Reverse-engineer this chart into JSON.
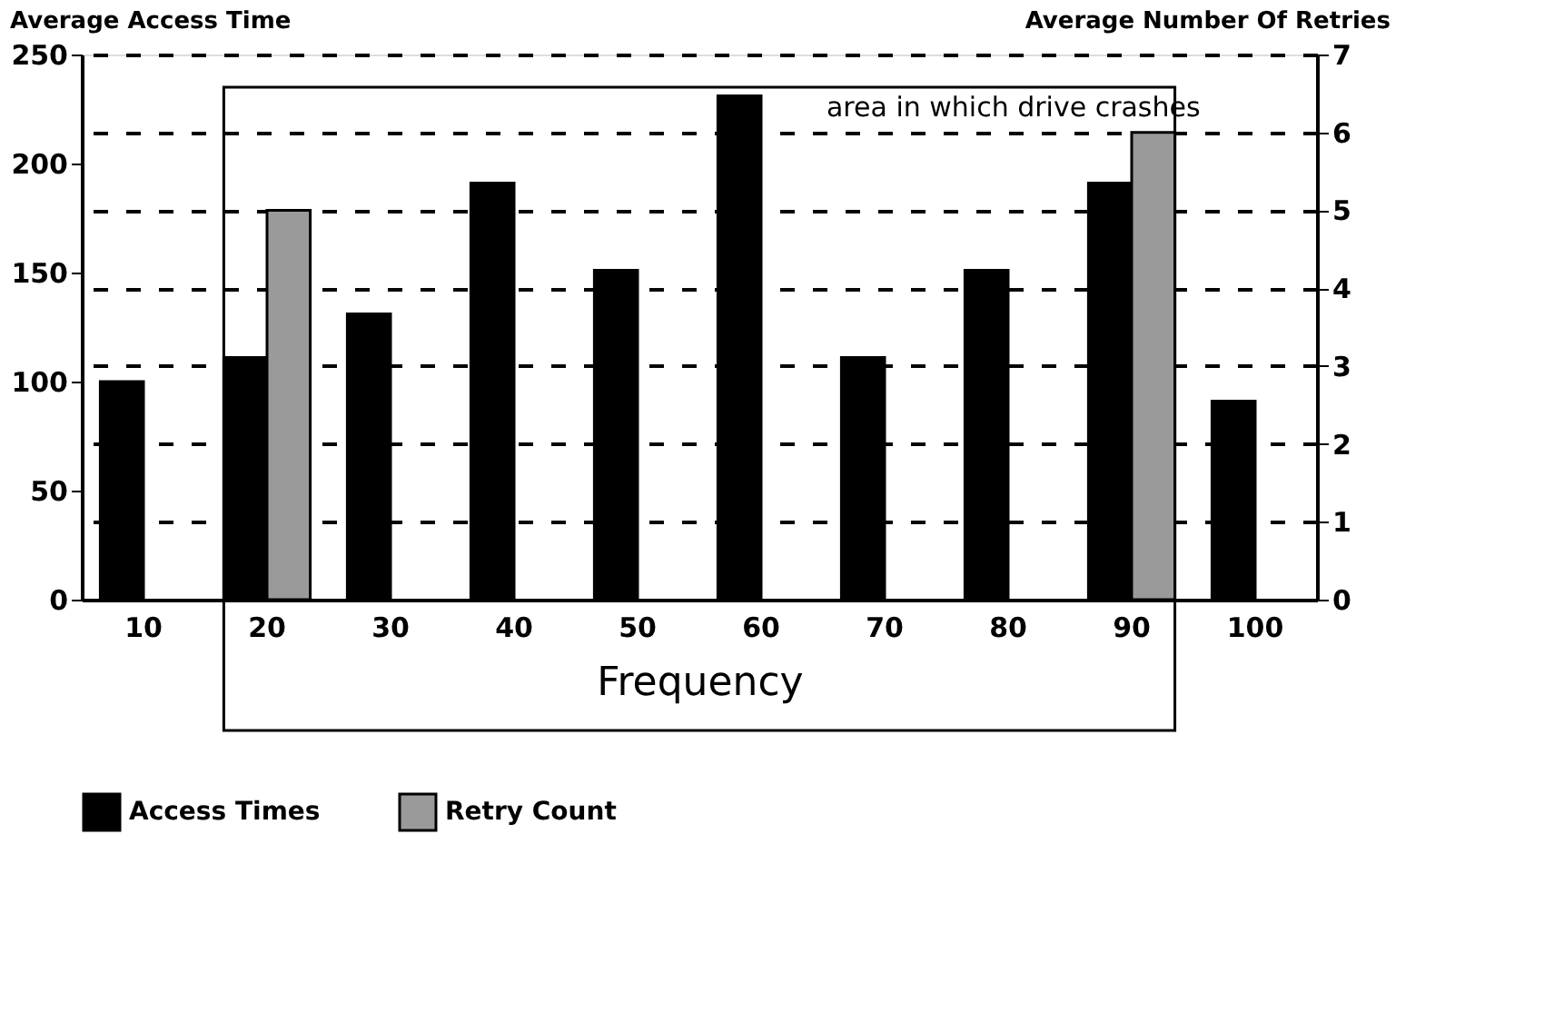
{
  "chart_data": {
    "type": "bar",
    "xlabel": "Frequency",
    "ylabel": "Average Access Time",
    "y2label": "Average Number Of Retries",
    "categories": [
      "10",
      "20",
      "30",
      "40",
      "50",
      "60",
      "70",
      "80",
      "90",
      "100"
    ],
    "series": [
      {
        "name": "Access Times",
        "color": "#000000",
        "values": [
          100,
          111,
          131,
          191,
          151,
          231,
          111,
          151,
          191,
          91
        ]
      },
      {
        "name": "Retry Count",
        "color": "#9a9a9a",
        "axis": "y2",
        "values": [
          null,
          5,
          null,
          null,
          null,
          null,
          null,
          null,
          6,
          null
        ]
      }
    ],
    "ylim": [
      0,
      250
    ],
    "yticks": [
      0,
      50,
      100,
      150,
      200,
      250
    ],
    "y2lim": [
      0,
      7
    ],
    "y2ticks": [
      0,
      1,
      2,
      3,
      4,
      5,
      6,
      7
    ],
    "grid": "y2",
    "legend": "bottom",
    "bands": [
      {
        "axis": "x",
        "from": "20",
        "to": "90",
        "label": "area in which drive crashes"
      }
    ]
  }
}
